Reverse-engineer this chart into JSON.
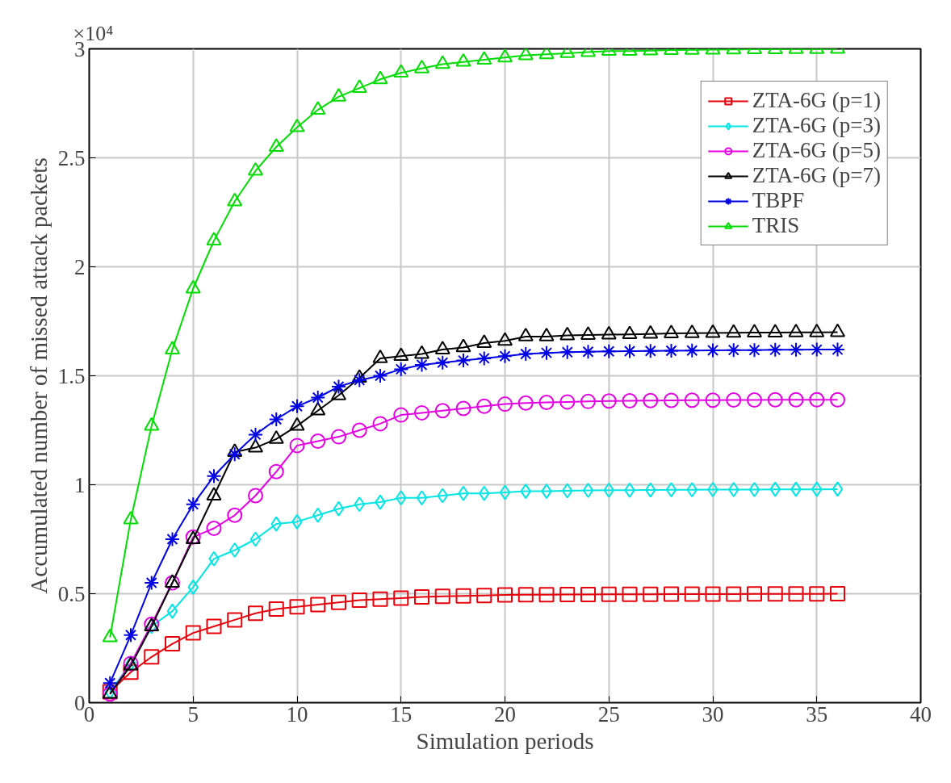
{
  "chart_data": {
    "type": "line",
    "xlabel": "Simulation periods",
    "ylabel": "Accumulated number of missed attack packets",
    "annotations": [
      "×10⁴"
    ],
    "x": [
      1,
      2,
      3,
      4,
      5,
      6,
      7,
      8,
      9,
      10,
      11,
      12,
      13,
      14,
      15,
      16,
      17,
      18,
      19,
      20,
      21,
      22,
      23,
      24,
      25,
      26,
      27,
      28,
      29,
      30,
      31,
      32,
      33,
      34,
      35,
      36
    ],
    "xlim": [
      0,
      40
    ],
    "xticks": [
      0,
      5,
      10,
      15,
      20,
      25,
      30,
      35,
      40
    ],
    "ylim": [
      0,
      3
    ],
    "yticks": [
      0,
      0.5,
      1,
      1.5,
      2,
      2.5,
      3
    ],
    "grid": true,
    "legend": "top right",
    "line_style": "solid",
    "series": [
      {
        "name": "ZTA-6G (p=1)",
        "color": "#e8000b",
        "marker": "square",
        "values": [
          0.05,
          0.14,
          0.21,
          0.27,
          0.32,
          0.35,
          0.38,
          0.41,
          0.43,
          0.44,
          0.45,
          0.46,
          0.47,
          0.475,
          0.48,
          0.485,
          0.488,
          0.49,
          0.492,
          0.494,
          0.495,
          0.495,
          0.496,
          0.496,
          0.497,
          0.497,
          0.497,
          0.498,
          0.498,
          0.498,
          0.498,
          0.499,
          0.499,
          0.499,
          0.499,
          0.5
        ]
      },
      {
        "name": "ZTA-6G (p=3)",
        "color": "#00e5e5",
        "marker": "diamond",
        "values": [
          0.05,
          0.18,
          0.35,
          0.42,
          0.53,
          0.66,
          0.7,
          0.75,
          0.82,
          0.83,
          0.86,
          0.89,
          0.91,
          0.92,
          0.94,
          0.94,
          0.95,
          0.96,
          0.96,
          0.965,
          0.97,
          0.97,
          0.972,
          0.974,
          0.975,
          0.975,
          0.976,
          0.977,
          0.977,
          0.978,
          0.978,
          0.978,
          0.979,
          0.979,
          0.979,
          0.98
        ]
      },
      {
        "name": "ZTA-6G (p=5)",
        "color": "#e600e6",
        "marker": "circle",
        "values": [
          0.04,
          0.18,
          0.36,
          0.55,
          0.76,
          0.8,
          0.86,
          0.95,
          1.06,
          1.18,
          1.2,
          1.22,
          1.25,
          1.28,
          1.32,
          1.33,
          1.34,
          1.35,
          1.36,
          1.37,
          1.375,
          1.378,
          1.38,
          1.382,
          1.384,
          1.385,
          1.386,
          1.387,
          1.388,
          1.388,
          1.389,
          1.389,
          1.39,
          1.39,
          1.39,
          1.39
        ]
      },
      {
        "name": "ZTA-6G (p=7)",
        "color": "#000000",
        "marker": "triangle",
        "values": [
          0.04,
          0.17,
          0.35,
          0.55,
          0.75,
          0.95,
          1.15,
          1.17,
          1.21,
          1.27,
          1.34,
          1.41,
          1.49,
          1.58,
          1.59,
          1.6,
          1.62,
          1.63,
          1.65,
          1.66,
          1.68,
          1.68,
          1.685,
          1.687,
          1.689,
          1.69,
          1.692,
          1.694,
          1.695,
          1.696,
          1.697,
          1.698,
          1.698,
          1.699,
          1.699,
          1.7
        ]
      },
      {
        "name": "TBPF",
        "color": "#0000e6",
        "marker": "cross",
        "values": [
          0.09,
          0.31,
          0.55,
          0.75,
          0.91,
          1.04,
          1.14,
          1.23,
          1.3,
          1.36,
          1.4,
          1.45,
          1.48,
          1.5,
          1.53,
          1.55,
          1.56,
          1.57,
          1.58,
          1.59,
          1.6,
          1.605,
          1.608,
          1.61,
          1.612,
          1.613,
          1.614,
          1.615,
          1.616,
          1.617,
          1.618,
          1.618,
          1.619,
          1.619,
          1.62,
          1.62
        ]
      },
      {
        "name": "TRIS",
        "color": "#00dd00",
        "marker": "triangle",
        "values": [
          0.3,
          0.84,
          1.27,
          1.62,
          1.9,
          2.12,
          2.3,
          2.44,
          2.55,
          2.64,
          2.72,
          2.78,
          2.82,
          2.86,
          2.89,
          2.91,
          2.93,
          2.94,
          2.95,
          2.96,
          2.97,
          2.975,
          2.98,
          2.985,
          2.99,
          2.99,
          2.992,
          2.994,
          2.995,
          2.996,
          2.997,
          2.998,
          2.998,
          2.999,
          2.999,
          3.0
        ]
      }
    ]
  }
}
